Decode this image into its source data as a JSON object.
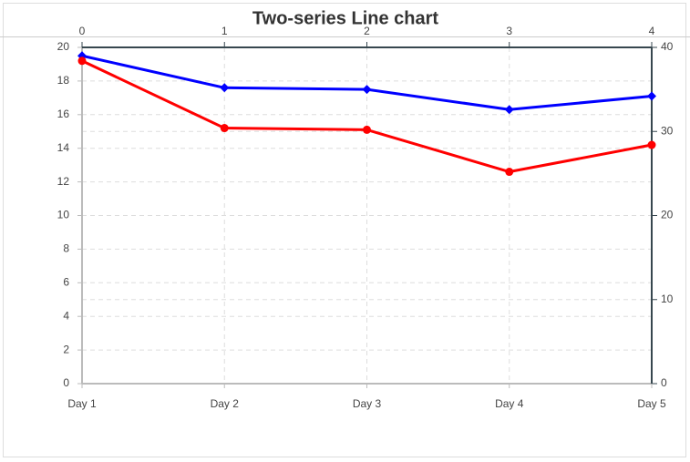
{
  "chart_data": {
    "type": "line",
    "title": "Two-series Line chart",
    "categories": [
      "Day 1",
      "Day 2",
      "Day 3",
      "Day 4",
      "Day 5"
    ],
    "x2lim": [
      0,
      4
    ],
    "x2ticks": [
      0,
      1,
      2,
      3,
      4
    ],
    "ylim": [
      0,
      20
    ],
    "yticks": [
      0,
      2,
      4,
      6,
      8,
      10,
      12,
      14,
      16,
      18,
      20
    ],
    "y2lim": [
      0,
      40
    ],
    "y2ticks": [
      0,
      10,
      20,
      30,
      40
    ],
    "grid": true,
    "series": [
      {
        "color": "#0000ff",
        "marker": "diamond",
        "values": [
          19.5,
          17.6,
          17.5,
          16.3,
          17.1
        ]
      },
      {
        "color": "#ff0000",
        "marker": "circle",
        "values": [
          19.2,
          15.2,
          15.1,
          12.6,
          14.2
        ]
      }
    ]
  }
}
